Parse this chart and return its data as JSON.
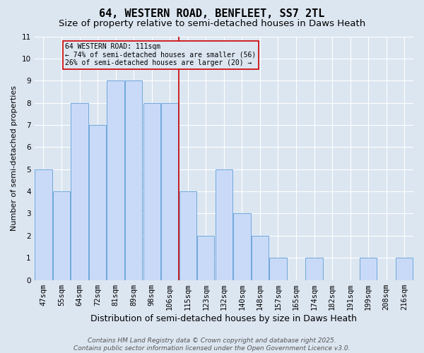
{
  "title": "64, WESTERN ROAD, BENFLEET, SS7 2TL",
  "subtitle": "Size of property relative to semi-detached houses in Daws Heath",
  "xlabel": "Distribution of semi-detached houses by size in Daws Heath",
  "ylabel": "Number of semi-detached properties",
  "categories": [
    "47sqm",
    "55sqm",
    "64sqm",
    "72sqm",
    "81sqm",
    "89sqm",
    "98sqm",
    "106sqm",
    "115sqm",
    "123sqm",
    "132sqm",
    "140sqm",
    "148sqm",
    "157sqm",
    "165sqm",
    "174sqm",
    "182sqm",
    "191sqm",
    "199sqm",
    "208sqm",
    "216sqm"
  ],
  "values": [
    5,
    4,
    8,
    7,
    9,
    9,
    8,
    8,
    4,
    2,
    5,
    3,
    2,
    1,
    0,
    1,
    0,
    0,
    1,
    0,
    1
  ],
  "bar_color": "#c9daf8",
  "bar_edge_color": "#6fa8dc",
  "grid_color": "#ffffff",
  "bg_color": "#dce6f1",
  "property_label": "64 WESTERN ROAD: 111sqm",
  "pct_smaller": 74,
  "n_smaller": 56,
  "pct_larger": 26,
  "n_larger": 20,
  "vline_bin_idx": 8,
  "vline_color": "#cc0000",
  "ylim": [
    0,
    11
  ],
  "yticks": [
    0,
    1,
    2,
    3,
    4,
    5,
    6,
    7,
    8,
    9,
    10,
    11
  ],
  "annotation_box_color": "#cc0000",
  "footer": "Contains HM Land Registry data © Crown copyright and database right 2025.\nContains public sector information licensed under the Open Government Licence v3.0.",
  "title_fontsize": 11,
  "subtitle_fontsize": 9.5,
  "xlabel_fontsize": 9,
  "ylabel_fontsize": 8,
  "tick_fontsize": 7.5,
  "footer_fontsize": 6.5
}
